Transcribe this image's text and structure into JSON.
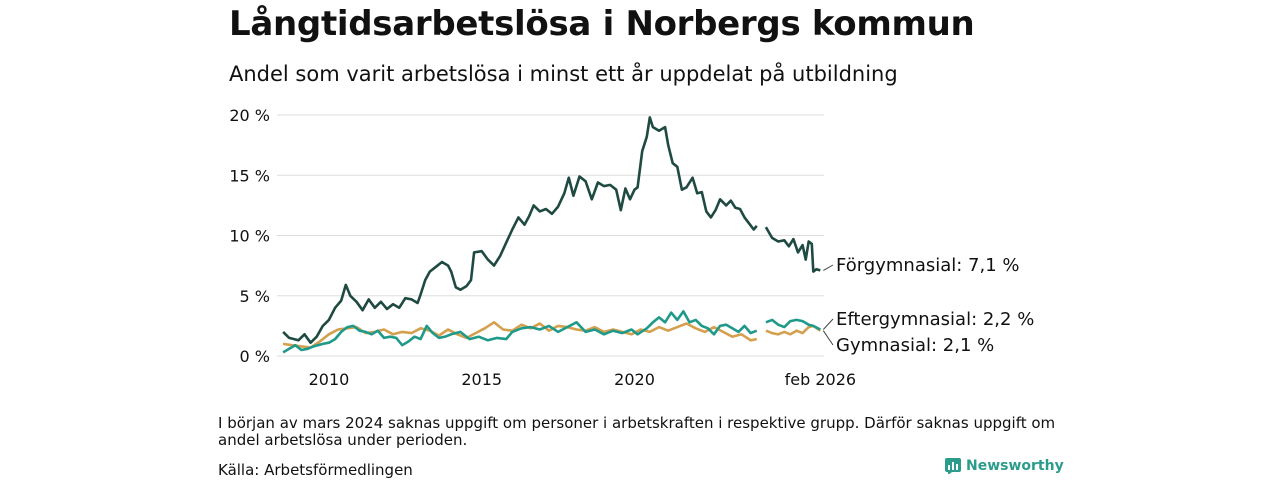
{
  "title": "Långtidsarbetslösa i Norbergs kommun",
  "subtitle": "Andel som varit arbetslösa i minst ett år uppdelat på utbildning",
  "note": "I början av mars 2024 saknas uppgift om personer i arbetskraften i respektive grupp. Därför saknas uppgift om andel arbetslösa under perioden.",
  "source": "Källa: Arbetsförmedlingen",
  "logo": {
    "text": "Newsworthy",
    "icon": "bar-chart-icon",
    "color": "#2b9c8c"
  },
  "chart_data": {
    "type": "line",
    "title": "Långtidsarbetslösa i Norbergs kommun",
    "subtitle": "Andel som varit arbetslösa i minst ett år uppdelat på utbildning",
    "xlabel": "",
    "ylabel": "",
    "ylim": [
      0,
      20
    ],
    "xlim": [
      2008.3,
      2026.2
    ],
    "grid": true,
    "y_ticks": [
      0,
      5,
      10,
      15,
      20
    ],
    "y_tick_labels": [
      "0 %",
      "5 %",
      "10 %",
      "15 %",
      "20 %"
    ],
    "x_ticks": [
      2010,
      2015,
      2020,
      2026.08
    ],
    "x_tick_labels": [
      "2010",
      "2015",
      "2020",
      "feb 2026"
    ],
    "series": [
      {
        "name": "Förgymnasial",
        "end_label": "Förgymnasial: 7,1 %",
        "color": "#1f4a42",
        "segments": [
          [
            [
              2008.5,
              2.0
            ],
            [
              2008.7,
              1.5
            ],
            [
              2009.0,
              1.3
            ],
            [
              2009.2,
              1.8
            ],
            [
              2009.4,
              1.1
            ],
            [
              2009.6,
              1.6
            ],
            [
              2009.8,
              2.5
            ],
            [
              2010.0,
              3.0
            ],
            [
              2010.2,
              4.0
            ],
            [
              2010.4,
              4.6
            ],
            [
              2010.55,
              5.9
            ],
            [
              2010.7,
              5.0
            ],
            [
              2010.9,
              4.5
            ],
            [
              2011.1,
              3.8
            ],
            [
              2011.3,
              4.7
            ],
            [
              2011.5,
              4.0
            ],
            [
              2011.7,
              4.5
            ],
            [
              2011.9,
              3.9
            ],
            [
              2012.1,
              4.3
            ],
            [
              2012.3,
              4.0
            ],
            [
              2012.5,
              4.8
            ],
            [
              2012.7,
              4.7
            ],
            [
              2012.9,
              4.4
            ],
            [
              2013.0,
              5.1
            ],
            [
              2013.15,
              6.3
            ],
            [
              2013.3,
              7.0
            ],
            [
              2013.5,
              7.4
            ],
            [
              2013.7,
              7.8
            ],
            [
              2013.9,
              7.5
            ],
            [
              2014.0,
              7.0
            ],
            [
              2014.15,
              5.7
            ],
            [
              2014.3,
              5.5
            ],
            [
              2014.5,
              5.8
            ],
            [
              2014.65,
              6.3
            ],
            [
              2014.75,
              8.6
            ],
            [
              2015.0,
              8.7
            ],
            [
              2015.2,
              8.0
            ],
            [
              2015.4,
              7.5
            ],
            [
              2015.6,
              8.3
            ],
            [
              2015.8,
              9.4
            ],
            [
              2016.0,
              10.5
            ],
            [
              2016.2,
              11.5
            ],
            [
              2016.4,
              10.9
            ],
            [
              2016.55,
              11.6
            ],
            [
              2016.7,
              12.5
            ],
            [
              2016.9,
              12.0
            ],
            [
              2017.1,
              12.2
            ],
            [
              2017.3,
              11.8
            ],
            [
              2017.5,
              12.4
            ],
            [
              2017.7,
              13.5
            ],
            [
              2017.85,
              14.8
            ],
            [
              2018.0,
              13.3
            ],
            [
              2018.2,
              14.9
            ],
            [
              2018.4,
              14.5
            ],
            [
              2018.6,
              13.0
            ],
            [
              2018.8,
              14.4
            ],
            [
              2019.0,
              14.1
            ],
            [
              2019.2,
              14.2
            ],
            [
              2019.4,
              13.8
            ],
            [
              2019.55,
              12.1
            ],
            [
              2019.7,
              13.9
            ],
            [
              2019.85,
              13.0
            ],
            [
              2020.0,
              13.8
            ],
            [
              2020.1,
              14.0
            ],
            [
              2020.25,
              17.0
            ],
            [
              2020.4,
              18.2
            ],
            [
              2020.5,
              19.8
            ],
            [
              2020.6,
              19.0
            ],
            [
              2020.8,
              18.7
            ],
            [
              2021.0,
              19.0
            ],
            [
              2021.1,
              17.5
            ],
            [
              2021.25,
              16.0
            ],
            [
              2021.4,
              15.7
            ],
            [
              2021.55,
              13.8
            ],
            [
              2021.7,
              14.0
            ],
            [
              2021.9,
              14.8
            ],
            [
              2022.05,
              13.5
            ],
            [
              2022.2,
              13.6
            ],
            [
              2022.35,
              12.0
            ],
            [
              2022.5,
              11.5
            ],
            [
              2022.65,
              12.1
            ],
            [
              2022.8,
              13.0
            ],
            [
              2023.0,
              12.5
            ],
            [
              2023.15,
              12.9
            ],
            [
              2023.3,
              12.3
            ],
            [
              2023.45,
              12.2
            ],
            [
              2023.6,
              11.5
            ],
            [
              2023.75,
              11.0
            ],
            [
              2023.9,
              10.5
            ],
            [
              2024.0,
              10.8
            ]
          ],
          [
            [
              2024.3,
              10.7
            ],
            [
              2024.5,
              9.8
            ],
            [
              2024.7,
              9.5
            ],
            [
              2024.9,
              9.6
            ],
            [
              2025.05,
              9.1
            ],
            [
              2025.2,
              9.7
            ],
            [
              2025.35,
              8.6
            ],
            [
              2025.5,
              9.2
            ],
            [
              2025.6,
              8.0
            ],
            [
              2025.7,
              9.5
            ],
            [
              2025.8,
              9.3
            ],
            [
              2025.85,
              7.0
            ],
            [
              2025.95,
              7.2
            ],
            [
              2026.08,
              7.1
            ]
          ]
        ]
      },
      {
        "name": "Eftergymnasial",
        "end_label": "Eftergymnasial: 2,2 %",
        "color": "#1f9a8a",
        "segments": [
          [
            [
              2008.5,
              0.3
            ],
            [
              2008.7,
              0.6
            ],
            [
              2008.9,
              0.9
            ],
            [
              2009.1,
              0.5
            ],
            [
              2009.3,
              0.6
            ],
            [
              2009.5,
              0.8
            ],
            [
              2009.8,
              1.0
            ],
            [
              2010.0,
              1.1
            ],
            [
              2010.2,
              1.4
            ],
            [
              2010.4,
              2.0
            ],
            [
              2010.6,
              2.4
            ],
            [
              2010.8,
              2.5
            ],
            [
              2011.0,
              2.1
            ],
            [
              2011.2,
              2.0
            ],
            [
              2011.4,
              1.8
            ],
            [
              2011.6,
              2.1
            ],
            [
              2011.8,
              1.5
            ],
            [
              2012.0,
              1.6
            ],
            [
              2012.2,
              1.5
            ],
            [
              2012.4,
              0.9
            ],
            [
              2012.6,
              1.2
            ],
            [
              2012.8,
              1.6
            ],
            [
              2013.0,
              1.4
            ],
            [
              2013.2,
              2.5
            ],
            [
              2013.4,
              1.9
            ],
            [
              2013.6,
              1.5
            ],
            [
              2013.8,
              1.6
            ],
            [
              2014.0,
              1.8
            ],
            [
              2014.3,
              2.0
            ],
            [
              2014.6,
              1.4
            ],
            [
              2014.9,
              1.6
            ],
            [
              2015.2,
              1.3
            ],
            [
              2015.5,
              1.5
            ],
            [
              2015.8,
              1.4
            ],
            [
              2016.0,
              2.0
            ],
            [
              2016.3,
              2.3
            ],
            [
              2016.6,
              2.4
            ],
            [
              2016.9,
              2.2
            ],
            [
              2017.2,
              2.5
            ],
            [
              2017.5,
              2.0
            ],
            [
              2017.8,
              2.4
            ],
            [
              2018.1,
              2.8
            ],
            [
              2018.4,
              2.0
            ],
            [
              2018.7,
              2.2
            ],
            [
              2019.0,
              1.8
            ],
            [
              2019.3,
              2.1
            ],
            [
              2019.6,
              1.9
            ],
            [
              2019.9,
              2.2
            ],
            [
              2020.1,
              1.8
            ],
            [
              2020.4,
              2.3
            ],
            [
              2020.6,
              2.8
            ],
            [
              2020.8,
              3.2
            ],
            [
              2021.0,
              2.8
            ],
            [
              2021.2,
              3.6
            ],
            [
              2021.4,
              3.0
            ],
            [
              2021.6,
              3.7
            ],
            [
              2021.8,
              2.8
            ],
            [
              2022.0,
              3.0
            ],
            [
              2022.2,
              2.5
            ],
            [
              2022.4,
              2.3
            ],
            [
              2022.6,
              1.8
            ],
            [
              2022.8,
              2.5
            ],
            [
              2023.0,
              2.6
            ],
            [
              2023.2,
              2.3
            ],
            [
              2023.4,
              2.0
            ],
            [
              2023.6,
              2.5
            ],
            [
              2023.8,
              1.9
            ],
            [
              2024.0,
              2.1
            ]
          ],
          [
            [
              2024.3,
              2.8
            ],
            [
              2024.5,
              3.0
            ],
            [
              2024.7,
              2.6
            ],
            [
              2024.9,
              2.4
            ],
            [
              2025.1,
              2.9
            ],
            [
              2025.3,
              3.0
            ],
            [
              2025.5,
              2.9
            ],
            [
              2025.7,
              2.6
            ],
            [
              2025.85,
              2.5
            ],
            [
              2026.08,
              2.2
            ]
          ]
        ]
      },
      {
        "name": "Gymnasial",
        "end_label": "Gymnasial: 2,1 %",
        "color": "#d4a04e",
        "segments": [
          [
            [
              2008.5,
              1.0
            ],
            [
              2008.8,
              0.9
            ],
            [
              2009.1,
              0.8
            ],
            [
              2009.4,
              0.7
            ],
            [
              2009.7,
              1.2
            ],
            [
              2010.0,
              1.8
            ],
            [
              2010.3,
              2.2
            ],
            [
              2010.6,
              2.3
            ],
            [
              2010.9,
              2.4
            ],
            [
              2011.2,
              1.9
            ],
            [
              2011.5,
              2.0
            ],
            [
              2011.8,
              2.2
            ],
            [
              2012.1,
              1.8
            ],
            [
              2012.4,
              2.0
            ],
            [
              2012.7,
              1.9
            ],
            [
              2013.0,
              2.3
            ],
            [
              2013.3,
              2.1
            ],
            [
              2013.6,
              1.7
            ],
            [
              2013.9,
              2.2
            ],
            [
              2014.2,
              1.8
            ],
            [
              2014.5,
              1.5
            ],
            [
              2014.8,
              1.9
            ],
            [
              2015.1,
              2.3
            ],
            [
              2015.4,
              2.8
            ],
            [
              2015.7,
              2.2
            ],
            [
              2016.0,
              2.1
            ],
            [
              2016.3,
              2.6
            ],
            [
              2016.6,
              2.3
            ],
            [
              2016.9,
              2.7
            ],
            [
              2017.2,
              2.1
            ],
            [
              2017.5,
              2.5
            ],
            [
              2017.8,
              2.4
            ],
            [
              2018.1,
              2.2
            ],
            [
              2018.4,
              2.1
            ],
            [
              2018.7,
              2.4
            ],
            [
              2019.0,
              2.0
            ],
            [
              2019.3,
              2.2
            ],
            [
              2019.6,
              2.0
            ],
            [
              2019.9,
              1.8
            ],
            [
              2020.2,
              2.2
            ],
            [
              2020.5,
              2.0
            ],
            [
              2020.8,
              2.4
            ],
            [
              2021.1,
              2.1
            ],
            [
              2021.4,
              2.4
            ],
            [
              2021.7,
              2.7
            ],
            [
              2022.0,
              2.3
            ],
            [
              2022.3,
              2.0
            ],
            [
              2022.6,
              2.4
            ],
            [
              2022.9,
              2.0
            ],
            [
              2023.2,
              1.6
            ],
            [
              2023.5,
              1.8
            ],
            [
              2023.8,
              1.3
            ],
            [
              2024.0,
              1.4
            ]
          ],
          [
            [
              2024.3,
              2.1
            ],
            [
              2024.5,
              1.9
            ],
            [
              2024.7,
              1.8
            ],
            [
              2024.9,
              2.0
            ],
            [
              2025.1,
              1.8
            ],
            [
              2025.3,
              2.1
            ],
            [
              2025.5,
              1.9
            ],
            [
              2025.7,
              2.4
            ],
            [
              2025.85,
              2.5
            ],
            [
              2026.08,
              2.1
            ]
          ]
        ]
      }
    ]
  }
}
